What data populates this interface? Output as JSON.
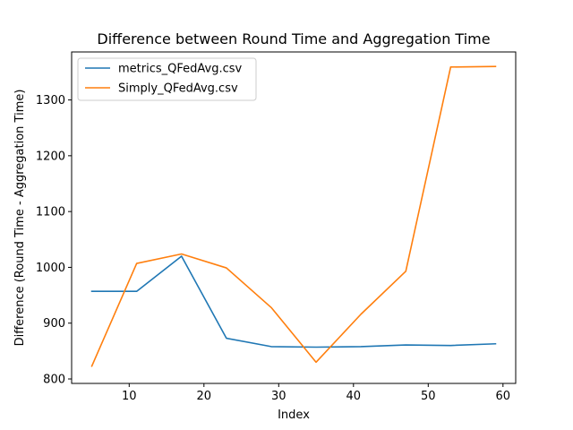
{
  "chart_data": {
    "type": "line",
    "title": "Difference between Round Time and Aggregation Time",
    "xlabel": "Index",
    "ylabel": "Difference (Round Time - Aggregation Time)",
    "xlim": [
      2.3,
      61.7
    ],
    "ylim": [
      792,
      1386
    ],
    "xticks": [
      10,
      20,
      30,
      40,
      50,
      60
    ],
    "yticks": [
      800,
      900,
      1000,
      1100,
      1200,
      1300
    ],
    "grid": false,
    "legend_position": "top-left",
    "series": [
      {
        "name": "metrics_QFedAvg.csv",
        "color": "#1f77b4",
        "x": [
          5,
          11,
          17,
          23,
          29,
          35,
          41,
          47,
          53,
          59
        ],
        "values": [
          957,
          957,
          1020,
          873,
          858,
          857,
          858,
          861,
          860,
          863
        ]
      },
      {
        "name": "Simply_QFedAvg.csv",
        "color": "#ff7f0e",
        "x": [
          5,
          11,
          17,
          23,
          29,
          35,
          41,
          47,
          53,
          59
        ],
        "values": [
          823,
          1007,
          1024,
          999,
          928,
          830,
          916,
          993,
          1359,
          1360
        ]
      }
    ]
  }
}
